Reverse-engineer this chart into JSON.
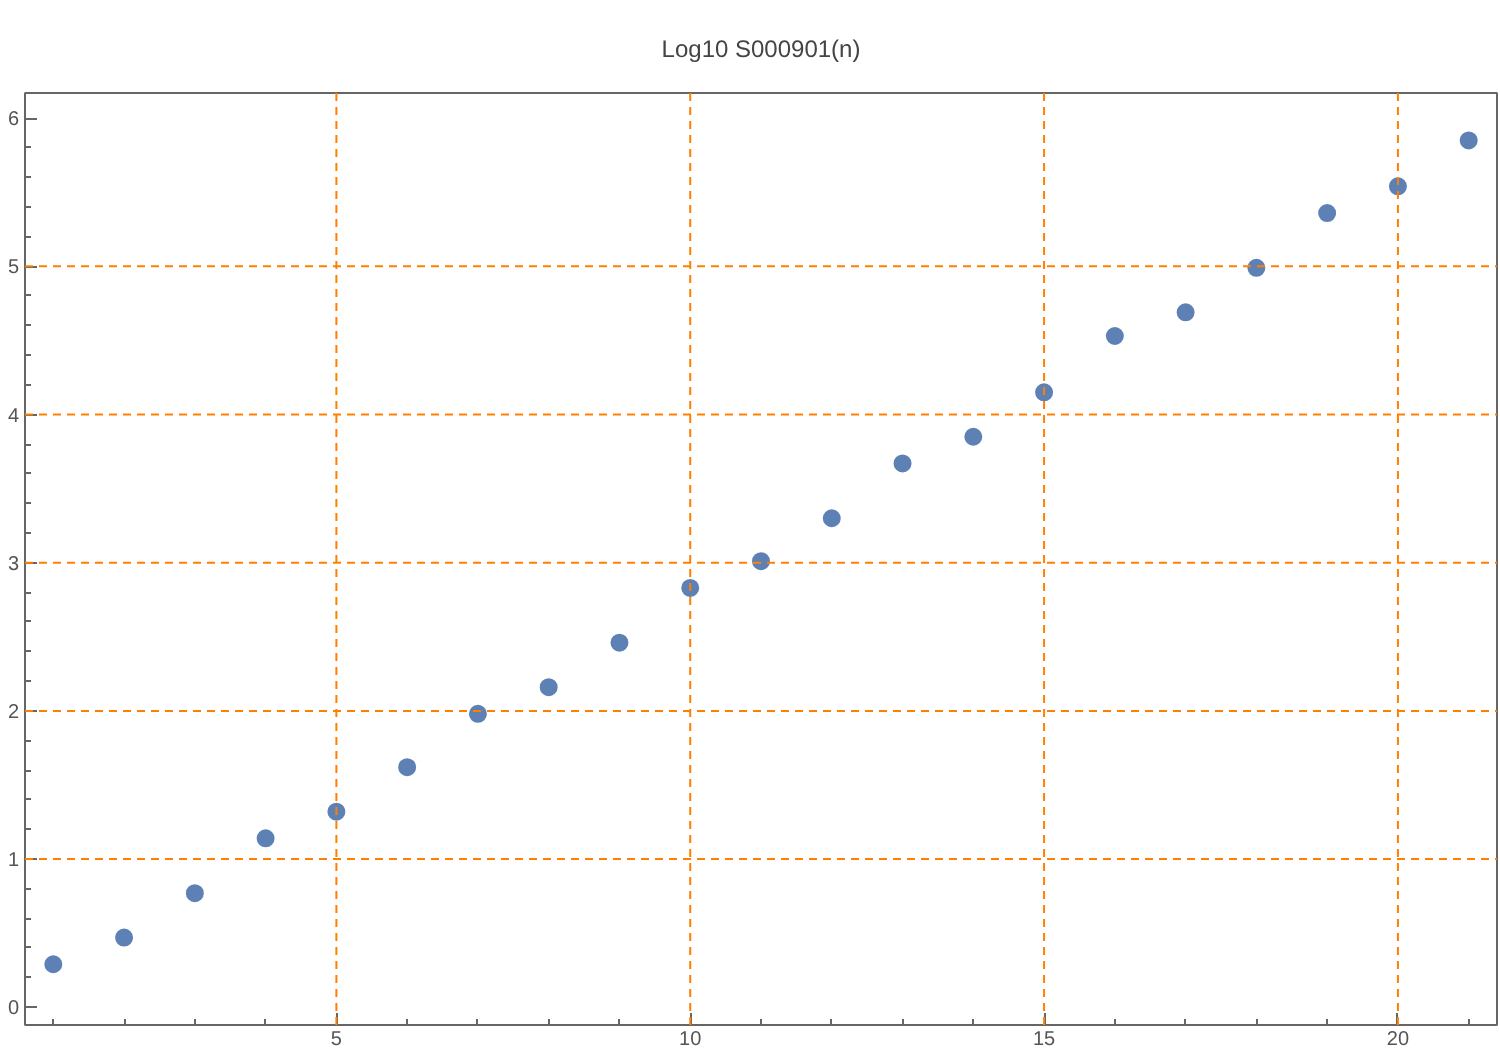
{
  "chart_data": {
    "type": "scatter",
    "title": "Log10 S000901(n)",
    "x": [
      1,
      2,
      3,
      4,
      5,
      6,
      7,
      8,
      9,
      10,
      11,
      12,
      13,
      14,
      15,
      16,
      17,
      18,
      19,
      20,
      21
    ],
    "values": [
      0.29,
      0.47,
      0.77,
      1.14,
      1.32,
      1.62,
      1.98,
      2.16,
      2.46,
      2.83,
      3.01,
      3.3,
      3.67,
      3.85,
      4.15,
      4.53,
      4.69,
      4.99,
      5.36,
      5.54,
      5.85
    ],
    "color": "#5e81b5",
    "marker": "circle",
    "xlim": [
      0.6,
      21.4
    ],
    "ylim": [
      -0.12,
      6.17
    ],
    "xticks": [
      {
        "value": 1,
        "label": null
      },
      {
        "value": 2,
        "label": null
      },
      {
        "value": 3,
        "label": null
      },
      {
        "value": 4,
        "label": null
      },
      5,
      {
        "value": 6,
        "label": null
      },
      {
        "value": 7,
        "label": null
      },
      {
        "value": 8,
        "label": null
      },
      {
        "value": 9,
        "label": null
      },
      10,
      {
        "value": 11,
        "label": null
      },
      {
        "value": 12,
        "label": null
      },
      {
        "value": 13,
        "label": null
      },
      {
        "value": 14,
        "label": null
      },
      15,
      {
        "value": 16,
        "label": null
      },
      {
        "value": 17,
        "label": null
      },
      {
        "value": 18,
        "label": null
      },
      {
        "value": 19,
        "label": null
      },
      20,
      {
        "value": 21,
        "label": null
      }
    ],
    "yticks": [
      0,
      {
        "value": 0.2,
        "label": null
      },
      {
        "value": 0.4,
        "label": null
      },
      {
        "value": 0.6,
        "label": null
      },
      {
        "value": 0.8,
        "label": null
      },
      1,
      {
        "value": 1.2,
        "label": null
      },
      {
        "value": 1.4,
        "label": null
      },
      {
        "value": 1.6,
        "label": null
      },
      {
        "value": 1.8,
        "label": null
      },
      2,
      {
        "value": 2.2,
        "label": null
      },
      {
        "value": 2.4,
        "label": null
      },
      {
        "value": 2.6,
        "label": null
      },
      {
        "value": 2.8,
        "label": null
      },
      3,
      {
        "value": 3.2,
        "label": null
      },
      {
        "value": 3.4,
        "label": null
      },
      {
        "value": 3.6,
        "label": null
      },
      {
        "value": 3.8,
        "label": null
      },
      4,
      {
        "value": 4.2,
        "label": null
      },
      {
        "value": 4.4,
        "label": null
      },
      {
        "value": 4.6,
        "label": null
      },
      {
        "value": 4.8,
        "label": null
      },
      5,
      {
        "value": 5.2,
        "label": null
      },
      {
        "value": 5.4,
        "label": null
      },
      {
        "value": 5.6,
        "label": null
      },
      {
        "value": 5.8,
        "label": null
      },
      6
    ],
    "ref_lines": [
      {
        "axis": "x",
        "value": 5,
        "color": "#ff8000",
        "line_style": "dashed"
      },
      {
        "axis": "x",
        "value": 10,
        "color": "#ff8000",
        "line_style": "dashed"
      },
      {
        "axis": "x",
        "value": 15,
        "color": "#ff8000",
        "line_style": "dashed"
      },
      {
        "axis": "x",
        "value": 20,
        "color": "#ff8000",
        "line_style": "dashed"
      },
      {
        "axis": "y",
        "value": 1,
        "color": "#ff8000",
        "line_style": "dashed"
      },
      {
        "axis": "y",
        "value": 2,
        "color": "#ff8000",
        "line_style": "dashed"
      },
      {
        "axis": "y",
        "value": 3,
        "color": "#ff8000",
        "line_style": "dashed"
      },
      {
        "axis": "y",
        "value": 4,
        "color": "#ff8000",
        "line_style": "dashed"
      },
      {
        "axis": "y",
        "value": 5,
        "color": "#ff8000",
        "line_style": "dashed"
      }
    ]
  }
}
